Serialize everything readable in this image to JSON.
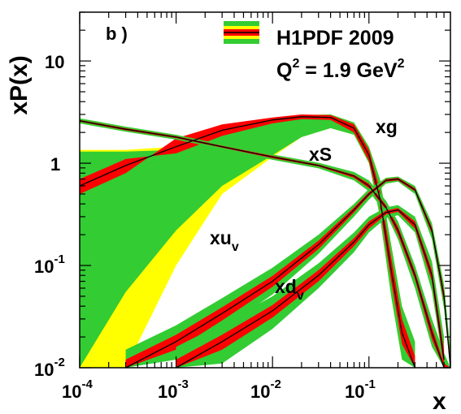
{
  "chart_data": {
    "type": "line",
    "panel_label": "b )",
    "ylabel": "xP(x)",
    "xlabel": "x",
    "xscale": "log",
    "yscale": "log",
    "xlim": [
      0.0001,
      0.7
    ],
    "ylim": [
      0.01,
      30
    ],
    "x_ticks": [
      {
        "value": 0.0001,
        "base": "10",
        "exp": "-4"
      },
      {
        "value": 0.001,
        "base": "10",
        "exp": "-3"
      },
      {
        "value": 0.01,
        "base": "10",
        "exp": "-2"
      },
      {
        "value": 0.1,
        "base": "10",
        "exp": "-1"
      }
    ],
    "y_ticks": [
      {
        "value": 0.01,
        "base": "10",
        "exp": "-2"
      },
      {
        "value": 0.1,
        "base": "10",
        "exp": "-1"
      },
      {
        "value": 1,
        "base": "1",
        "exp": ""
      },
      {
        "value": 10,
        "base": "10",
        "exp": ""
      }
    ],
    "legend": {
      "title": "H1PDF 2009",
      "q2_text": "Q",
      "q2_sup": "2",
      "q2_value": " = 1.9 GeV",
      "q2_unit_sup": "2",
      "placement": "top-right"
    },
    "band_colors": {
      "model": "#ffff00",
      "parametrisation": "#33cc33",
      "experimental": "#ff0000",
      "central": "#000000"
    },
    "series": [
      {
        "name": "xg",
        "label_base": "xg",
        "label_sub": "",
        "x": [
          0.0001,
          0.0003,
          0.001,
          0.003,
          0.01,
          0.02,
          0.04,
          0.07,
          0.1,
          0.13,
          0.17,
          0.22,
          0.3
        ],
        "y": [
          0.6,
          0.95,
          1.45,
          2.1,
          2.65,
          2.85,
          2.8,
          2.2,
          1.2,
          0.45,
          0.09,
          0.022,
          0.01
        ],
        "exp": [
          0.5,
          0.8,
          1.75,
          2.4,
          2.8,
          3.0,
          2.95,
          2.4,
          1.35,
          0.55,
          0.12,
          0.03,
          0.013
        ],
        "exp_lo": [
          0.7,
          1.1,
          1.25,
          1.85,
          2.45,
          2.7,
          2.65,
          2.0,
          1.05,
          0.37,
          0.07,
          0.017,
          0.008
        ],
        "total_hi": [
          1.3,
          1.3,
          1.35,
          1.9,
          2.6,
          2.95,
          3.0,
          2.5,
          1.45,
          0.7,
          0.16,
          0.04,
          0.018
        ],
        "total_lo": [
          0.01,
          0.055,
          0.22,
          0.6,
          1.2,
          1.8,
          2.2,
          1.9,
          1.0,
          0.3,
          0.05,
          0.012,
          0.006
        ],
        "model_hi": [
          1.35,
          1.35,
          1.45,
          1.95,
          2.6,
          2.95,
          3.0,
          2.5,
          1.45,
          0.7,
          0.16,
          0.04,
          0.018
        ],
        "model_lo": [
          0.01,
          0.01,
          0.1,
          0.5,
          1.15,
          1.8,
          2.2,
          1.9,
          1.0,
          0.3,
          0.05,
          0.012,
          0.006
        ]
      },
      {
        "name": "xS",
        "label_base": "xS",
        "label_sub": "",
        "x": [
          0.0001,
          0.0003,
          0.001,
          0.003,
          0.01,
          0.03,
          0.07,
          0.1,
          0.15,
          0.2,
          0.3,
          0.45,
          0.6,
          0.7
        ],
        "y": [
          2.6,
          2.15,
          1.8,
          1.45,
          1.15,
          0.95,
          0.75,
          0.6,
          0.37,
          0.22,
          0.08,
          0.022,
          0.01,
          0.006
        ],
        "total_hi": [
          2.75,
          2.28,
          1.9,
          1.53,
          1.22,
          1.01,
          0.82,
          0.68,
          0.43,
          0.27,
          0.1,
          0.03,
          0.014,
          0.009
        ],
        "total_lo": [
          2.45,
          2.03,
          1.7,
          1.37,
          1.08,
          0.89,
          0.68,
          0.53,
          0.32,
          0.18,
          0.06,
          0.016,
          0.007,
          0.004
        ],
        "exp_hi": [
          2.65,
          2.2,
          1.84,
          1.48,
          1.18,
          0.97,
          0.77,
          0.63,
          0.39,
          0.24,
          0.087,
          0.025,
          0.011,
          0.007
        ],
        "exp_lo": [
          2.55,
          2.1,
          1.76,
          1.42,
          1.12,
          0.93,
          0.72,
          0.57,
          0.35,
          0.2,
          0.073,
          0.019,
          0.009,
          0.005
        ]
      },
      {
        "name": "xu_v",
        "label_base": "xu",
        "label_sub": "v",
        "x": [
          0.0003,
          0.001,
          0.003,
          0.01,
          0.03,
          0.07,
          0.1,
          0.15,
          0.2,
          0.3,
          0.45,
          0.6,
          0.7
        ],
        "y": [
          0.01,
          0.018,
          0.034,
          0.07,
          0.16,
          0.35,
          0.5,
          0.68,
          0.7,
          0.55,
          0.22,
          0.05,
          0.01
        ],
        "total_hi": [
          0.015,
          0.026,
          0.048,
          0.095,
          0.2,
          0.4,
          0.56,
          0.72,
          0.74,
          0.6,
          0.26,
          0.065,
          0.015
        ],
        "total_lo": [
          0.006,
          0.012,
          0.024,
          0.052,
          0.13,
          0.3,
          0.44,
          0.63,
          0.66,
          0.5,
          0.18,
          0.038,
          0.007
        ],
        "exp_hi": [
          0.012,
          0.021,
          0.039,
          0.079,
          0.175,
          0.37,
          0.52,
          0.7,
          0.72,
          0.57,
          0.235,
          0.056,
          0.012
        ],
        "exp_lo": [
          0.0085,
          0.015,
          0.029,
          0.062,
          0.145,
          0.33,
          0.48,
          0.66,
          0.68,
          0.53,
          0.205,
          0.044,
          0.008
        ]
      },
      {
        "name": "xd_v",
        "label_base": "xd",
        "label_sub": "v",
        "x": [
          0.001,
          0.003,
          0.01,
          0.03,
          0.07,
          0.1,
          0.15,
          0.2,
          0.3,
          0.45,
          0.6
        ],
        "y": [
          0.01,
          0.018,
          0.036,
          0.08,
          0.17,
          0.25,
          0.33,
          0.35,
          0.25,
          0.08,
          0.012
        ],
        "total_hi": [
          0.016,
          0.027,
          0.05,
          0.105,
          0.21,
          0.3,
          0.37,
          0.39,
          0.3,
          0.11,
          0.02
        ],
        "total_lo": [
          0.006,
          0.011,
          0.024,
          0.06,
          0.135,
          0.21,
          0.29,
          0.31,
          0.21,
          0.056,
          0.007
        ],
        "exp_hi": [
          0.012,
          0.021,
          0.041,
          0.09,
          0.185,
          0.27,
          0.345,
          0.365,
          0.27,
          0.09,
          0.015
        ],
        "exp_lo": [
          0.008,
          0.015,
          0.031,
          0.07,
          0.155,
          0.23,
          0.315,
          0.335,
          0.23,
          0.07,
          0.009
        ]
      }
    ]
  }
}
